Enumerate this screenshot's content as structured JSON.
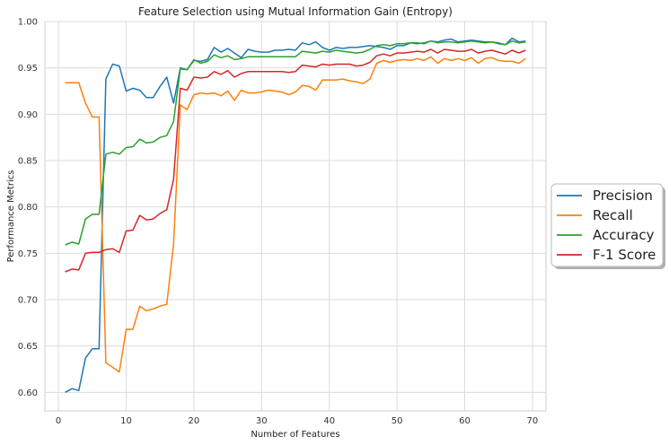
{
  "chart_data": {
    "type": "line",
    "title": "Feature Selection using Mutual Information Gain (Entropy)",
    "xlabel": "Number of Features",
    "ylabel": "Performance Metrics",
    "xlim": [
      -2,
      72
    ],
    "ylim": [
      0.58,
      1.0
    ],
    "xticks": [
      0,
      10,
      20,
      30,
      40,
      50,
      60,
      70
    ],
    "yticks": [
      0.6,
      0.65,
      0.7,
      0.75,
      0.8,
      0.85,
      0.9,
      0.95,
      1.0
    ],
    "xtick_labels": [
      "0",
      "10",
      "20",
      "30",
      "40",
      "50",
      "60",
      "70"
    ],
    "ytick_labels": [
      "0.60",
      "0.65",
      "0.70",
      "0.75",
      "0.80",
      "0.85",
      "0.90",
      "0.95",
      "1.00"
    ],
    "grid": true,
    "legend_position": "right, outside plot area",
    "x": [
      1,
      2,
      3,
      4,
      5,
      6,
      7,
      8,
      9,
      10,
      11,
      12,
      13,
      14,
      15,
      16,
      17,
      18,
      19,
      20,
      21,
      22,
      23,
      24,
      25,
      26,
      27,
      28,
      29,
      30,
      31,
      32,
      33,
      34,
      35,
      36,
      37,
      38,
      39,
      40,
      41,
      42,
      43,
      44,
      45,
      46,
      47,
      48,
      49,
      50,
      51,
      52,
      53,
      54,
      55,
      56,
      57,
      58,
      59,
      60,
      61,
      62,
      63,
      64,
      65,
      66,
      67,
      68,
      69
    ],
    "series": [
      {
        "name": "Precision",
        "color": "#1f77b4",
        "values": [
          0.6,
          0.604,
          0.602,
          0.637,
          0.647,
          0.647,
          0.938,
          0.954,
          0.952,
          0.925,
          0.928,
          0.926,
          0.918,
          0.918,
          0.93,
          0.94,
          0.912,
          0.95,
          0.948,
          0.958,
          0.957,
          0.959,
          0.972,
          0.967,
          0.971,
          0.966,
          0.961,
          0.97,
          0.968,
          0.967,
          0.967,
          0.969,
          0.969,
          0.97,
          0.969,
          0.977,
          0.975,
          0.978,
          0.972,
          0.969,
          0.972,
          0.971,
          0.972,
          0.972,
          0.973,
          0.974,
          0.973,
          0.972,
          0.97,
          0.974,
          0.974,
          0.977,
          0.976,
          0.977,
          0.979,
          0.978,
          0.98,
          0.981,
          0.978,
          0.979,
          0.98,
          0.979,
          0.978,
          0.978,
          0.976,
          0.975,
          0.982,
          0.978,
          0.979
        ]
      },
      {
        "name": "Recall",
        "color": "#ff7f0e",
        "values": [
          0.934,
          0.934,
          0.934,
          0.912,
          0.897,
          0.897,
          0.632,
          0.627,
          0.622,
          0.668,
          0.668,
          0.693,
          0.688,
          0.69,
          0.693,
          0.695,
          0.76,
          0.91,
          0.905,
          0.921,
          0.923,
          0.922,
          0.923,
          0.92,
          0.925,
          0.915,
          0.926,
          0.923,
          0.923,
          0.924,
          0.926,
          0.925,
          0.924,
          0.921,
          0.924,
          0.931,
          0.93,
          0.926,
          0.937,
          0.937,
          0.937,
          0.938,
          0.936,
          0.935,
          0.933,
          0.938,
          0.955,
          0.958,
          0.956,
          0.958,
          0.959,
          0.958,
          0.96,
          0.958,
          0.962,
          0.955,
          0.96,
          0.958,
          0.96,
          0.958,
          0.961,
          0.955,
          0.96,
          0.961,
          0.958,
          0.957,
          0.957,
          0.955,
          0.96
        ]
      },
      {
        "name": "Accuracy",
        "color": "#2ca02c",
        "values": [
          0.759,
          0.762,
          0.76,
          0.787,
          0.792,
          0.792,
          0.857,
          0.859,
          0.857,
          0.864,
          0.865,
          0.873,
          0.869,
          0.87,
          0.875,
          0.877,
          0.892,
          0.949,
          0.948,
          0.959,
          0.955,
          0.957,
          0.964,
          0.961,
          0.963,
          0.959,
          0.96,
          0.962,
          0.962,
          0.962,
          0.962,
          0.962,
          0.962,
          0.962,
          0.962,
          0.968,
          0.967,
          0.966,
          0.968,
          0.967,
          0.969,
          0.968,
          0.967,
          0.966,
          0.967,
          0.97,
          0.974,
          0.975,
          0.974,
          0.976,
          0.976,
          0.977,
          0.977,
          0.976,
          0.979,
          0.977,
          0.978,
          0.978,
          0.977,
          0.978,
          0.979,
          0.978,
          0.977,
          0.978,
          0.977,
          0.975,
          0.979,
          0.977,
          0.978
        ]
      },
      {
        "name": "F-1 Score",
        "color": "#d62728",
        "values": [
          0.73,
          0.733,
          0.732,
          0.75,
          0.751,
          0.751,
          0.754,
          0.755,
          0.751,
          0.774,
          0.775,
          0.791,
          0.786,
          0.787,
          0.793,
          0.797,
          0.83,
          0.928,
          0.926,
          0.94,
          0.939,
          0.94,
          0.946,
          0.943,
          0.947,
          0.94,
          0.944,
          0.946,
          0.946,
          0.946,
          0.946,
          0.946,
          0.946,
          0.945,
          0.946,
          0.953,
          0.952,
          0.951,
          0.954,
          0.953,
          0.954,
          0.954,
          0.954,
          0.952,
          0.953,
          0.956,
          0.963,
          0.965,
          0.963,
          0.966,
          0.966,
          0.967,
          0.968,
          0.967,
          0.97,
          0.966,
          0.97,
          0.969,
          0.968,
          0.968,
          0.97,
          0.966,
          0.968,
          0.969,
          0.967,
          0.965,
          0.969,
          0.966,
          0.969
        ]
      }
    ]
  }
}
